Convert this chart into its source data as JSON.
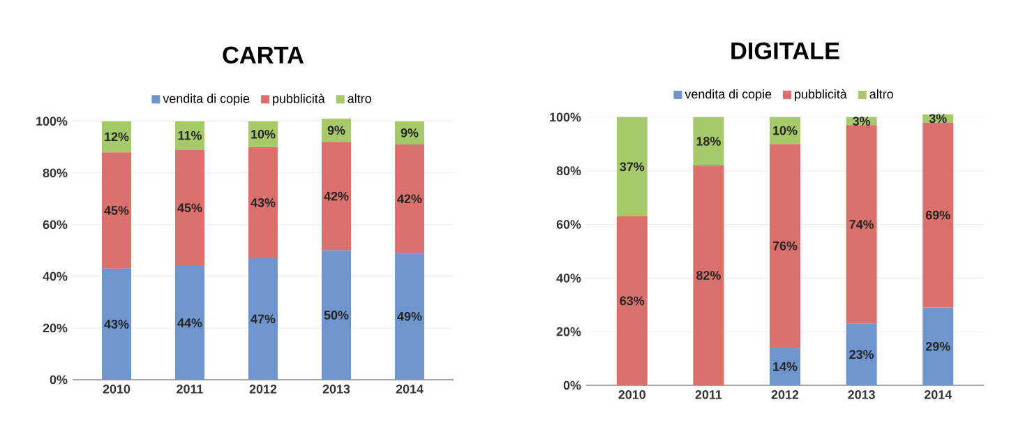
{
  "chart_data": [
    {
      "type": "bar",
      "title": "CARTA",
      "stacked": true,
      "categories": [
        "2010",
        "2011",
        "2012",
        "2013",
        "2014"
      ],
      "series": [
        {
          "name": "vendita di copie",
          "color": "#6f95cf",
          "values": [
            43,
            44,
            47,
            50,
            49
          ],
          "value_labels": [
            "43%",
            "44%",
            "47%",
            "50%",
            "49%"
          ]
        },
        {
          "name": "pubblicità",
          "color": "#d9706c",
          "values": [
            45,
            45,
            43,
            42,
            42
          ],
          "value_labels": [
            "45%",
            "45%",
            "43%",
            "42%",
            "42%"
          ]
        },
        {
          "name": "altro",
          "color": "#a6c96a",
          "values": [
            12,
            11,
            10,
            9,
            9
          ],
          "value_labels": [
            "12%",
            "11%",
            "10%",
            "9%",
            "9%"
          ]
        }
      ],
      "ylim": [
        0,
        101
      ],
      "yticks": [
        {
          "value": 0,
          "label": "0%"
        },
        {
          "value": 20,
          "label": "20%"
        },
        {
          "value": 40,
          "label": "40%"
        },
        {
          "value": 60,
          "label": "60%"
        },
        {
          "value": 80,
          "label": "80%"
        },
        {
          "value": 100,
          "label": "100%"
        }
      ],
      "grid": "y",
      "legend": "top"
    },
    {
      "type": "bar",
      "title": "DIGITALE",
      "stacked": true,
      "categories": [
        "2010",
        "2011",
        "2012",
        "2013",
        "2014"
      ],
      "series": [
        {
          "name": "vendita di copie",
          "color": "#6f95cf",
          "values": [
            0,
            0,
            14,
            23,
            29
          ],
          "value_labels": [
            null,
            null,
            "14%",
            "23%",
            "29%"
          ]
        },
        {
          "name": "pubblicità",
          "color": "#d9706c",
          "values": [
            63,
            82,
            76,
            74,
            69
          ],
          "value_labels": [
            "63%",
            "82%",
            "76%",
            "74%",
            "69%"
          ]
        },
        {
          "name": "altro",
          "color": "#a6c96a",
          "values": [
            37,
            18,
            10,
            3,
            3
          ],
          "value_labels": [
            "37%",
            "18%",
            "10%",
            "3%",
            "3%"
          ]
        }
      ],
      "ylim": [
        0,
        101
      ],
      "yticks": [
        {
          "value": 0,
          "label": "0%"
        },
        {
          "value": 20,
          "label": "20%"
        },
        {
          "value": 40,
          "label": "40%"
        },
        {
          "value": 60,
          "label": "60%"
        },
        {
          "value": 80,
          "label": "80%"
        },
        {
          "value": 100,
          "label": "100%"
        }
      ],
      "grid": "y",
      "legend": "top"
    }
  ]
}
